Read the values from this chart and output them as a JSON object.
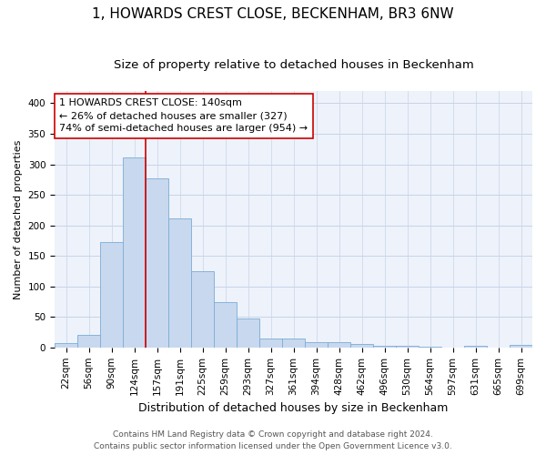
{
  "title": "1, HOWARDS CREST CLOSE, BECKENHAM, BR3 6NW",
  "subtitle": "Size of property relative to detached houses in Beckenham",
  "xlabel": "Distribution of detached houses by size in Beckenham",
  "ylabel": "Number of detached properties",
  "bar_labels": [
    "22sqm",
    "56sqm",
    "90sqm",
    "124sqm",
    "157sqm",
    "191sqm",
    "225sqm",
    "259sqm",
    "293sqm",
    "327sqm",
    "361sqm",
    "394sqm",
    "428sqm",
    "462sqm",
    "496sqm",
    "530sqm",
    "564sqm",
    "597sqm",
    "631sqm",
    "665sqm",
    "699sqm"
  ],
  "bar_heights": [
    7,
    20,
    172,
    311,
    277,
    211,
    125,
    74,
    48,
    14,
    15,
    8,
    9,
    5,
    3,
    2,
    1,
    0,
    3,
    0,
    4
  ],
  "bar_color": "#c8d8ef",
  "bar_edge_color": "#7aadd4",
  "grid_color": "#c8d4e8",
  "background_color": "#eef2fa",
  "vline_color": "#cc0000",
  "vline_x_index": 4,
  "annotation_text": "1 HOWARDS CREST CLOSE: 140sqm\n← 26% of detached houses are smaller (327)\n74% of semi-detached houses are larger (954) →",
  "annotation_box_facecolor": "#ffffff",
  "annotation_box_edgecolor": "#cc0000",
  "ylim": [
    0,
    420
  ],
  "yticks": [
    0,
    50,
    100,
    150,
    200,
    250,
    300,
    350,
    400
  ],
  "footer_line1": "Contains HM Land Registry data © Crown copyright and database right 2024.",
  "footer_line2": "Contains public sector information licensed under the Open Government Licence v3.0.",
  "title_fontsize": 11,
  "subtitle_fontsize": 9.5,
  "xlabel_fontsize": 9,
  "ylabel_fontsize": 8,
  "tick_fontsize": 7.5,
  "annotation_fontsize": 8,
  "footer_fontsize": 6.5
}
